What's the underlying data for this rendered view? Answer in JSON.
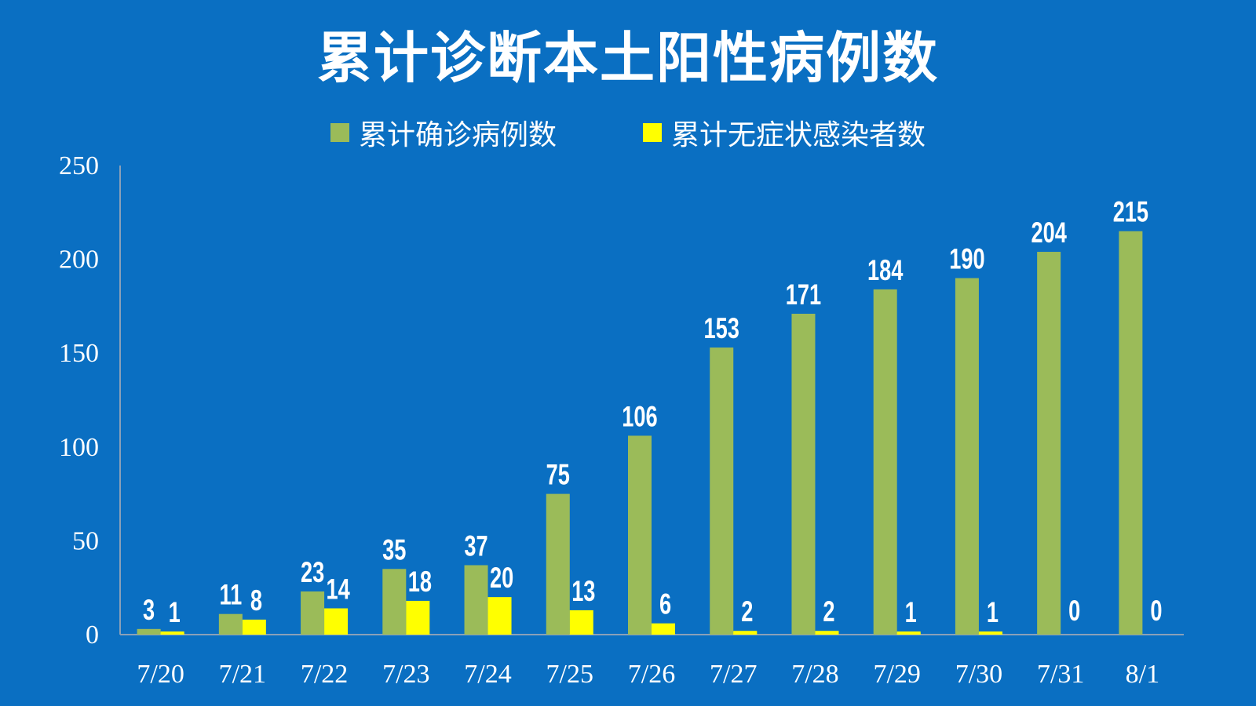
{
  "chart_data": {
    "type": "bar",
    "title": "累计诊断本土阳性病例数",
    "categories": [
      "7/20",
      "7/21",
      "7/22",
      "7/23",
      "7/24",
      "7/25",
      "7/26",
      "7/27",
      "7/28",
      "7/29",
      "7/30",
      "7/31",
      "8/1"
    ],
    "series": [
      {
        "name": "累计确诊病例数",
        "color": "#9bbb59",
        "values": [
          3,
          11,
          23,
          35,
          37,
          75,
          106,
          153,
          171,
          184,
          190,
          204,
          215
        ]
      },
      {
        "name": "累计无症状感染者数",
        "color": "#ffff00",
        "values": [
          1,
          8,
          14,
          18,
          20,
          13,
          6,
          2,
          2,
          1,
          1,
          0,
          0
        ]
      }
    ],
    "yticks": [
      "0",
      "50",
      "100",
      "150",
      "200",
      "250"
    ],
    "ylim": [
      0,
      250
    ],
    "grid": false,
    "legend_position": "top",
    "background": "#0a6fc2",
    "data_labels": true
  }
}
